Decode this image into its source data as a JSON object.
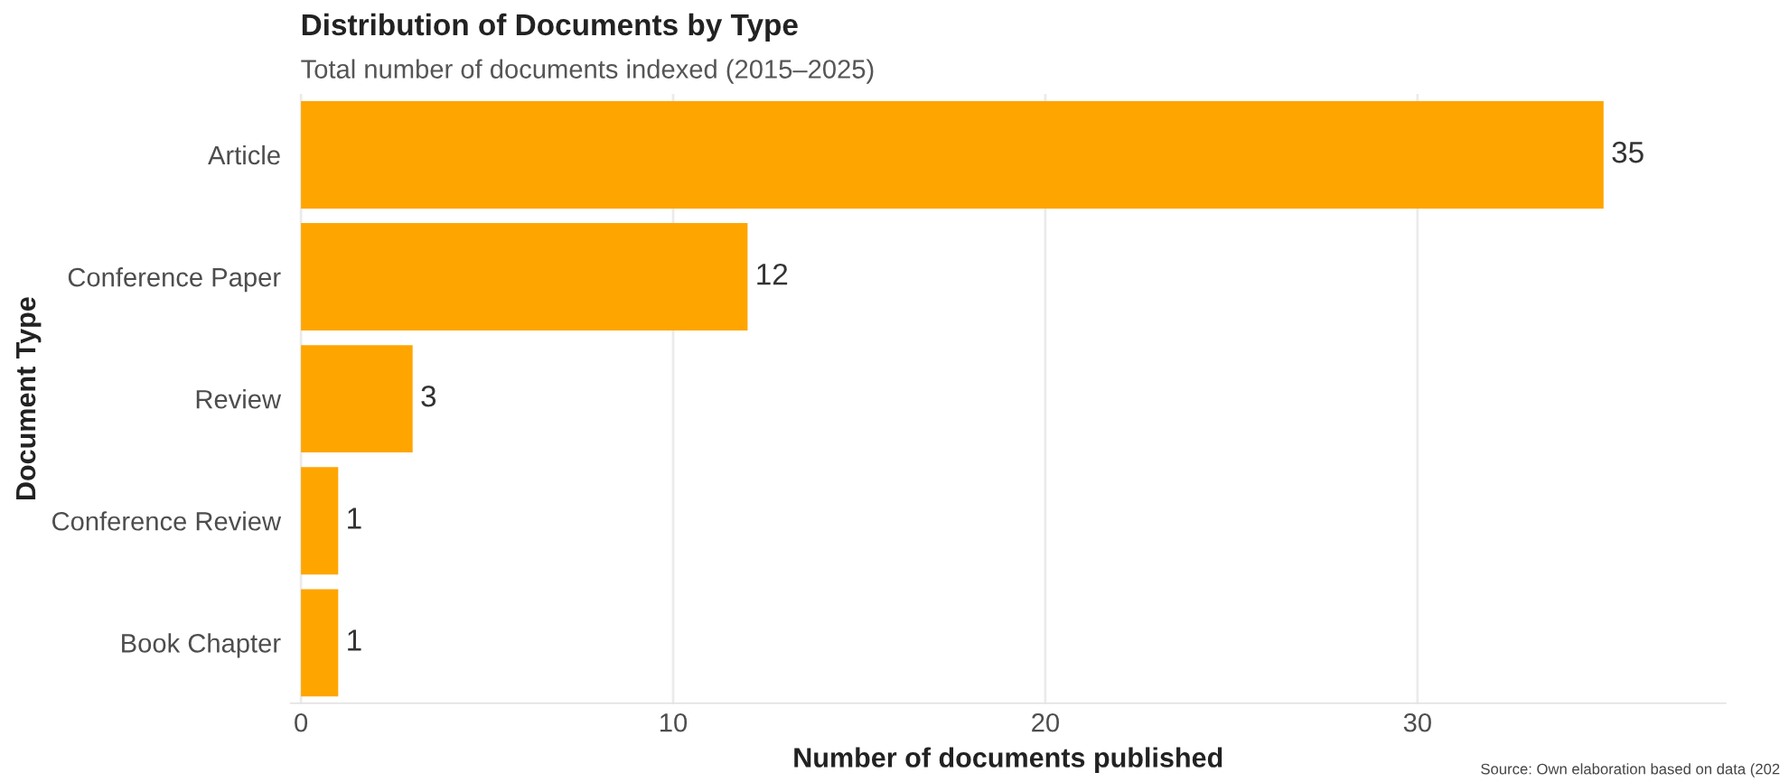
{
  "chart_data": {
    "type": "bar",
    "orientation": "horizontal",
    "title": "Distribution of Documents by Type",
    "subtitle": "Total number of documents indexed (2015–2025)",
    "xlabel": "Number of documents published",
    "ylabel": "Document Type",
    "categories": [
      "Article",
      "Conference Paper",
      "Review",
      "Conference Review",
      "Book Chapter"
    ],
    "values": [
      35,
      12,
      3,
      1,
      1
    ],
    "color": "#ffa500",
    "data_labels": true,
    "xlim": [
      -0.3,
      38.3
    ],
    "xticks": [
      0,
      10,
      20,
      30
    ],
    "grid": "x",
    "annotations": [
      "Source: Own elaboration based on data (202"
    ]
  }
}
